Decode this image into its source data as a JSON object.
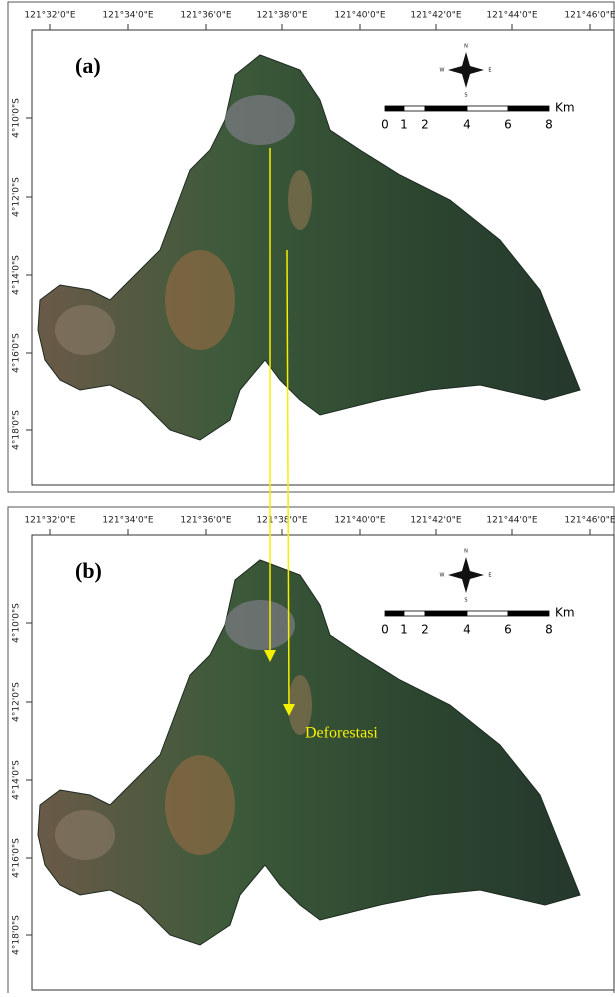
{
  "panels": [
    {
      "label": "(a)",
      "lon_labels": [
        "121°32'0\"E",
        "121°34'0\"E",
        "121°36'0\"E",
        "121°38'0\"E",
        "121°40'0\"E",
        "121°42'0\"E",
        "121°44'0\"E",
        "121°46'0\"E"
      ],
      "lat_labels": [
        "4°10'0\"S",
        "4°12'0\"S",
        "4°14'0\"S",
        "4°16'0\"S",
        "4°18'0\"S"
      ],
      "scale_labels": [
        "0",
        "1",
        "2",
        "4",
        "6",
        "8"
      ],
      "scale_unit": "Km",
      "compass": [
        "N",
        "S",
        "E",
        "W"
      ]
    },
    {
      "label": "(b)",
      "lon_labels": [
        "121°32'0\"E",
        "121°34'0\"E",
        "121°36'0\"E",
        "121°38'0\"E",
        "121°40'0\"E",
        "121°42'0\"E",
        "121°44'0\"E",
        "121°46'0\"E"
      ],
      "lat_labels": [
        "4°10'0\"S",
        "4°12'0\"S",
        "4°14'0\"S",
        "4°16'0\"S",
        "4°18'0\"S"
      ],
      "scale_labels": [
        "0",
        "1",
        "2",
        "4",
        "6",
        "8"
      ],
      "scale_unit": "Km",
      "compass": [
        "N",
        "S",
        "E",
        "W"
      ]
    }
  ],
  "annotation": "Deforestasi"
}
